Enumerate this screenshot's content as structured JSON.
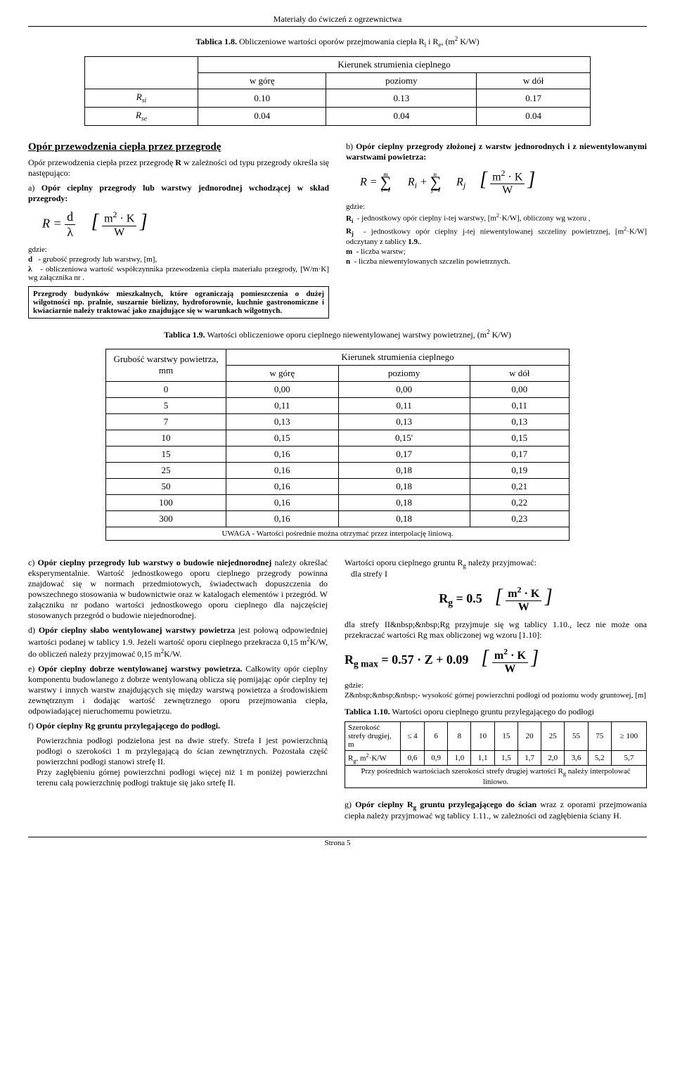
{
  "header": "Materiały do ćwiczeń z ogrzewnictwa",
  "caption_18": {
    "label": "Tablica 1.8.",
    "text": "Obliczeniowe wartości oporów przejmowania ciepła R<sub>i</sub> i R<sub>e</sub>, (m<sup>2</sup> K/W)"
  },
  "table_18": {
    "header_span": "Kierunek strumienia cieplnego",
    "cols": [
      "w górę",
      "poziomy",
      "w dół"
    ],
    "rows": [
      {
        "label": "R<sub>si</sub>",
        "vals": [
          "0.10",
          "0.13",
          "0.17"
        ]
      },
      {
        "label": "R<sub>se</sub>",
        "vals": [
          "0.04",
          "0.04",
          "0.04"
        ]
      }
    ]
  },
  "left": {
    "title": "Opór przewodzenia ciepła przez przegrodę",
    "intro": "Opór przewodzenia ciepła przez przegrodę <b>R</b> w zależności od typu przegrody określa się następująco:",
    "a_label": "a) <b>Opór cieplny przegrody lub warstwy jednorodnej wchodzącej w skład przegrody:</b>",
    "gdzie": "gdzie:",
    "d_def": "<b>d</b>&nbsp;&nbsp;&nbsp;- grubość przegrody lub warstwy, [m],",
    "lambda_def": "<b>λ</b>&nbsp;&nbsp;&nbsp;- obliczeniowa wartość współczynnika przewodzenia ciepła materiału przegrody, [W/m·K] wg załącznika nr .",
    "boxed": "Przegrody budynków mieszkalnych, które ograniczają pomieszczenia o dużej wilgotności np. pralnie, suszarnie bielizny, hydroforownie, kuchnie gastronomiczne i kwiaciarnie należy traktować jako znajdujące się w warunkach wilgotnych."
  },
  "right": {
    "b_label": "b) <b>Opór cieplny przegrody złożonej z warstw jednorodnych i z niewentylowanymi warstwami powietrza:</b>",
    "gdzie": "gdzie:",
    "ri_def": "<b>R<sub>i</sub></b>&nbsp;&nbsp;- jednostkowy opór cieplny i-tej warstwy, [m<sup>2</sup>·K/W], obliczony wg wzoru ,",
    "rj_def": "<b>R<sub>j</sub></b>&nbsp;&nbsp;- jednostkowy opór cieplny j-tej niewentylowanej szczeliny powietrznej, [m<sup>2</sup>·K/W] odczytany z tablicy <b>1.9.</b>.",
    "m_def": "<b>m</b>&nbsp;&nbsp;- liczba warstw;",
    "n_def": "<b>n</b>&nbsp;&nbsp;- liczba niewentylowanych szczelin powietrznych."
  },
  "caption_19": {
    "label": "Tablica 1.9.",
    "text": "Wartości obliczeniowe oporu cieplnego niewentylowanej warstwy powietrznej, (m<sup>2</sup> K/W)"
  },
  "table_19": {
    "h1": "Grubość warstwy powietrza, mm",
    "h2": "Kierunek strumienia cieplnego",
    "cols": [
      "w górę",
      "poziomy",
      "w dół"
    ],
    "rows": [
      [
        "0",
        "0,00",
        "0,00",
        "0,00"
      ],
      [
        "5",
        "0,11",
        "0,11",
        "0,11"
      ],
      [
        "7",
        "0,13",
        "0,13",
        "0,13"
      ],
      [
        "10",
        "0,15",
        "0,15'",
        "0,15"
      ],
      [
        "15",
        "0,16",
        "0,17",
        "0,17"
      ],
      [
        "25",
        "0,16",
        "0,18",
        "0,19"
      ],
      [
        "50",
        "0,16",
        "0,18",
        "0,21"
      ],
      [
        "100",
        "0,16",
        "0,18",
        "0,22"
      ],
      [
        "300",
        "0,16",
        "0,18",
        "0,23"
      ]
    ],
    "note": "UWAGA - Wartości pośrednie można otrzymać przez interpolację liniową."
  },
  "lower_left": {
    "c": "c) <b>Opór cieplny przegrody lub warstwy o budowie niejednorodnej</b> należy określać eksperymentalnie. Wartość jednostkowego oporu cieplnego przegrody powinna znajdować się w normach przedmiotowych, świadectwach dopuszczenia do powszechnego stosowania w budownictwie oraz w katalogach elementów i przegród. W załączniku nr  podano wartości jednostkowego oporu cieplnego dla najczęściej stosowanych przegród o budowie niejednorodnej.",
    "d": "d) <b>Opór cieplny słabo wentylowanej warstwy powietrza</b> jest połową odpowiedniej wartości podanej w tablicy 1.9. Jeżeli wartość oporu cieplnego przekracza 0,15 m<sup>2</sup>K/W, do obliczeń należy przyjmować 0,15 m<sup>2</sup>K/W.",
    "e": "e) <b>Opór cieplny dobrze wentylowanej warstwy powietrza.</b> Całkowity opór cieplny komponentu budowlanego z dobrze wentylowaną oblicza się pomijając opór cieplny tej warstwy i innych warstw znajdujących się między warstwą powietrza a środowiskiem zewnętrznym i dodając wartość zewnętrznego oporu przejmowania ciepła, odpowiadającej nieruchomemu powietrzu.",
    "f_title": "f) <b>Opór cieplny Rg gruntu przylegającego do podłogi.</b>",
    "f_body": "Powierzchnia podłogi podzielona jest na dwie strefy. Strefa I jest powierzchnią podłogi o szerokości 1 m przylegającą do ścian zewnętrznych. Pozostała część powierzchni podłogi stanowi strefę II.<br>Przy zagłębieniu górnej powierzchni podłogi więcej niż 1 m poniżej powierzchni terenu całą powierzchnię podłogi traktuje się jako srtefę II."
  },
  "lower_right": {
    "intro": "Wartości oporu cieplnego gruntu R<sub>g</sub> należy przyjmować:<br>&nbsp;&nbsp;&nbsp;dla strefy I",
    "strefa2": "dla strefy II&nbsp;&nbsp;Rg przyjmuje się wg tablicy 1.10., lecz nie może ona przekraczać wartości Rg max obliczonej wg  wzoru [1.10]:",
    "gdzie": "gdzie:",
    "z_def": "Z&nbsp;&nbsp;&nbsp;- wysokość górnej powierzchni podłogi od poziomu wody gruntowej, [m]",
    "cap_110": "<b>Tablica 1.10.</b> Wartości oporu cieplnego gruntu przylegającego do podłogi",
    "t110": {
      "h1": "Szerokość strefy drugiej, m",
      "h2_cols": [
        "≤ 4",
        "6",
        "8",
        "10",
        "15",
        "20",
        "25",
        "55",
        "75",
        "≥ 100"
      ],
      "row_label": "R<sub>g</sub>, m<sup>2</sup>·K/W",
      "row_vals": [
        "0,6",
        "0,9",
        "1,0",
        "1,1",
        "1,5",
        "1,7",
        "2,0",
        "3,6",
        "5,2",
        "5,7"
      ],
      "note": "Przy pośrednich wartościach szerokości strefy drugiej wartości R<sub>g</sub> należy interpolować liniowo."
    },
    "g": "g) <b>Opór cieplny R<sub>g</sub> gruntu przylegającego do ścian</b> wraz z oporami przejmowania ciepła należy przyjmować wg tablicy 1.11., w zależności od zagłębienia ściany H."
  },
  "footer": "Strona 5"
}
